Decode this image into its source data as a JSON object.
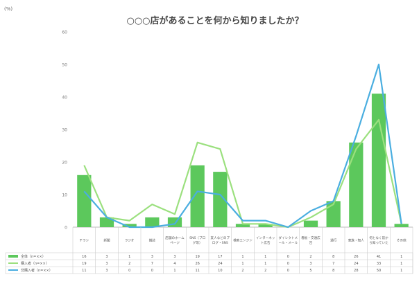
{
  "chart_data": {
    "type": "bar",
    "title": "○○○店があることを何から知りましたか？",
    "ylabel": "(%)",
    "xlabel": "",
    "ylim": [
      0,
      60
    ],
    "y_ticks": [
      0,
      10,
      20,
      30,
      40,
      50,
      60
    ],
    "grid": false,
    "legend": "table-below",
    "categories": [
      "チラシ",
      "新聞",
      "ラジオ",
      "雑誌",
      "店舗のホームページ",
      "SNS（ブログ等）",
      "友人などのブログ・SNS",
      "検索エンジン",
      "インターネット広告",
      "ダイレクトメール・メール",
      "看板・交通広告",
      "通行",
      "家族・知人",
      "何となく前から知っていた",
      "その他"
    ],
    "series": [
      {
        "name": "全体（n=××）",
        "type": "bar",
        "color": "#5cc85c",
        "values": [
          16,
          3,
          1,
          3,
          3,
          19,
          17,
          1,
          1,
          0,
          2,
          8,
          26,
          41,
          1
        ]
      },
      {
        "name": "購入者（n=××）",
        "type": "line",
        "color": "#9be07e",
        "values": [
          19,
          3,
          2,
          7,
          4,
          26,
          24,
          1,
          1,
          0,
          3,
          7,
          24,
          33,
          1
        ]
      },
      {
        "name": "非購入者（n=××）",
        "type": "line",
        "color": "#4aaee0",
        "values": [
          11,
          3,
          0,
          0,
          1,
          11,
          10,
          2,
          2,
          0,
          5,
          8,
          28,
          50,
          1
        ]
      }
    ]
  }
}
